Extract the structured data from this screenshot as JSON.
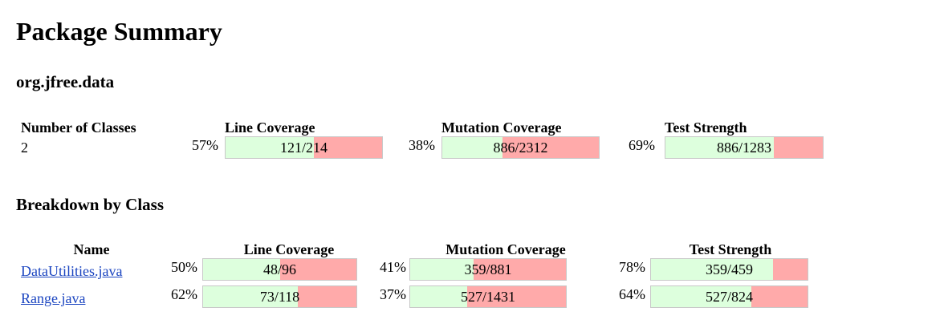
{
  "title": "Package Summary",
  "package_name": "org.jfree.data",
  "summary": {
    "headers": {
      "classes": "Number of Classes",
      "line": "Line Coverage",
      "mutation": "Mutation Coverage",
      "strength": "Test Strength"
    },
    "num_classes": "2",
    "line": {
      "percent": "57%",
      "label": "121/214",
      "fraction": 0.565
    },
    "mutation": {
      "percent": "38%",
      "label": "886/2312",
      "fraction": 0.383
    },
    "strength": {
      "percent": "69%",
      "label": "886/1283",
      "fraction": 0.691
    }
  },
  "breakdown_title": "Breakdown by Class",
  "breakdown": {
    "headers": {
      "name": "Name",
      "line": "Line Coverage",
      "mutation": "Mutation Coverage",
      "strength": "Test Strength"
    },
    "rows": [
      {
        "name": "DataUtilities.java",
        "line": {
          "percent": "50%",
          "label": "48/96",
          "fraction": 0.5
        },
        "mutation": {
          "percent": "41%",
          "label": "359/881",
          "fraction": 0.407
        },
        "strength": {
          "percent": "78%",
          "label": "359/459",
          "fraction": 0.782
        }
      },
      {
        "name": "Range.java",
        "line": {
          "percent": "62%",
          "label": "73/118",
          "fraction": 0.619
        },
        "mutation": {
          "percent": "37%",
          "label": "527/1431",
          "fraction": 0.368
        },
        "strength": {
          "percent": "64%",
          "label": "527/824",
          "fraction": 0.64
        }
      }
    ]
  },
  "colors": {
    "covered": "#ddffdd",
    "uncovered": "#ffaaaa",
    "link": "#1a44c0"
  }
}
